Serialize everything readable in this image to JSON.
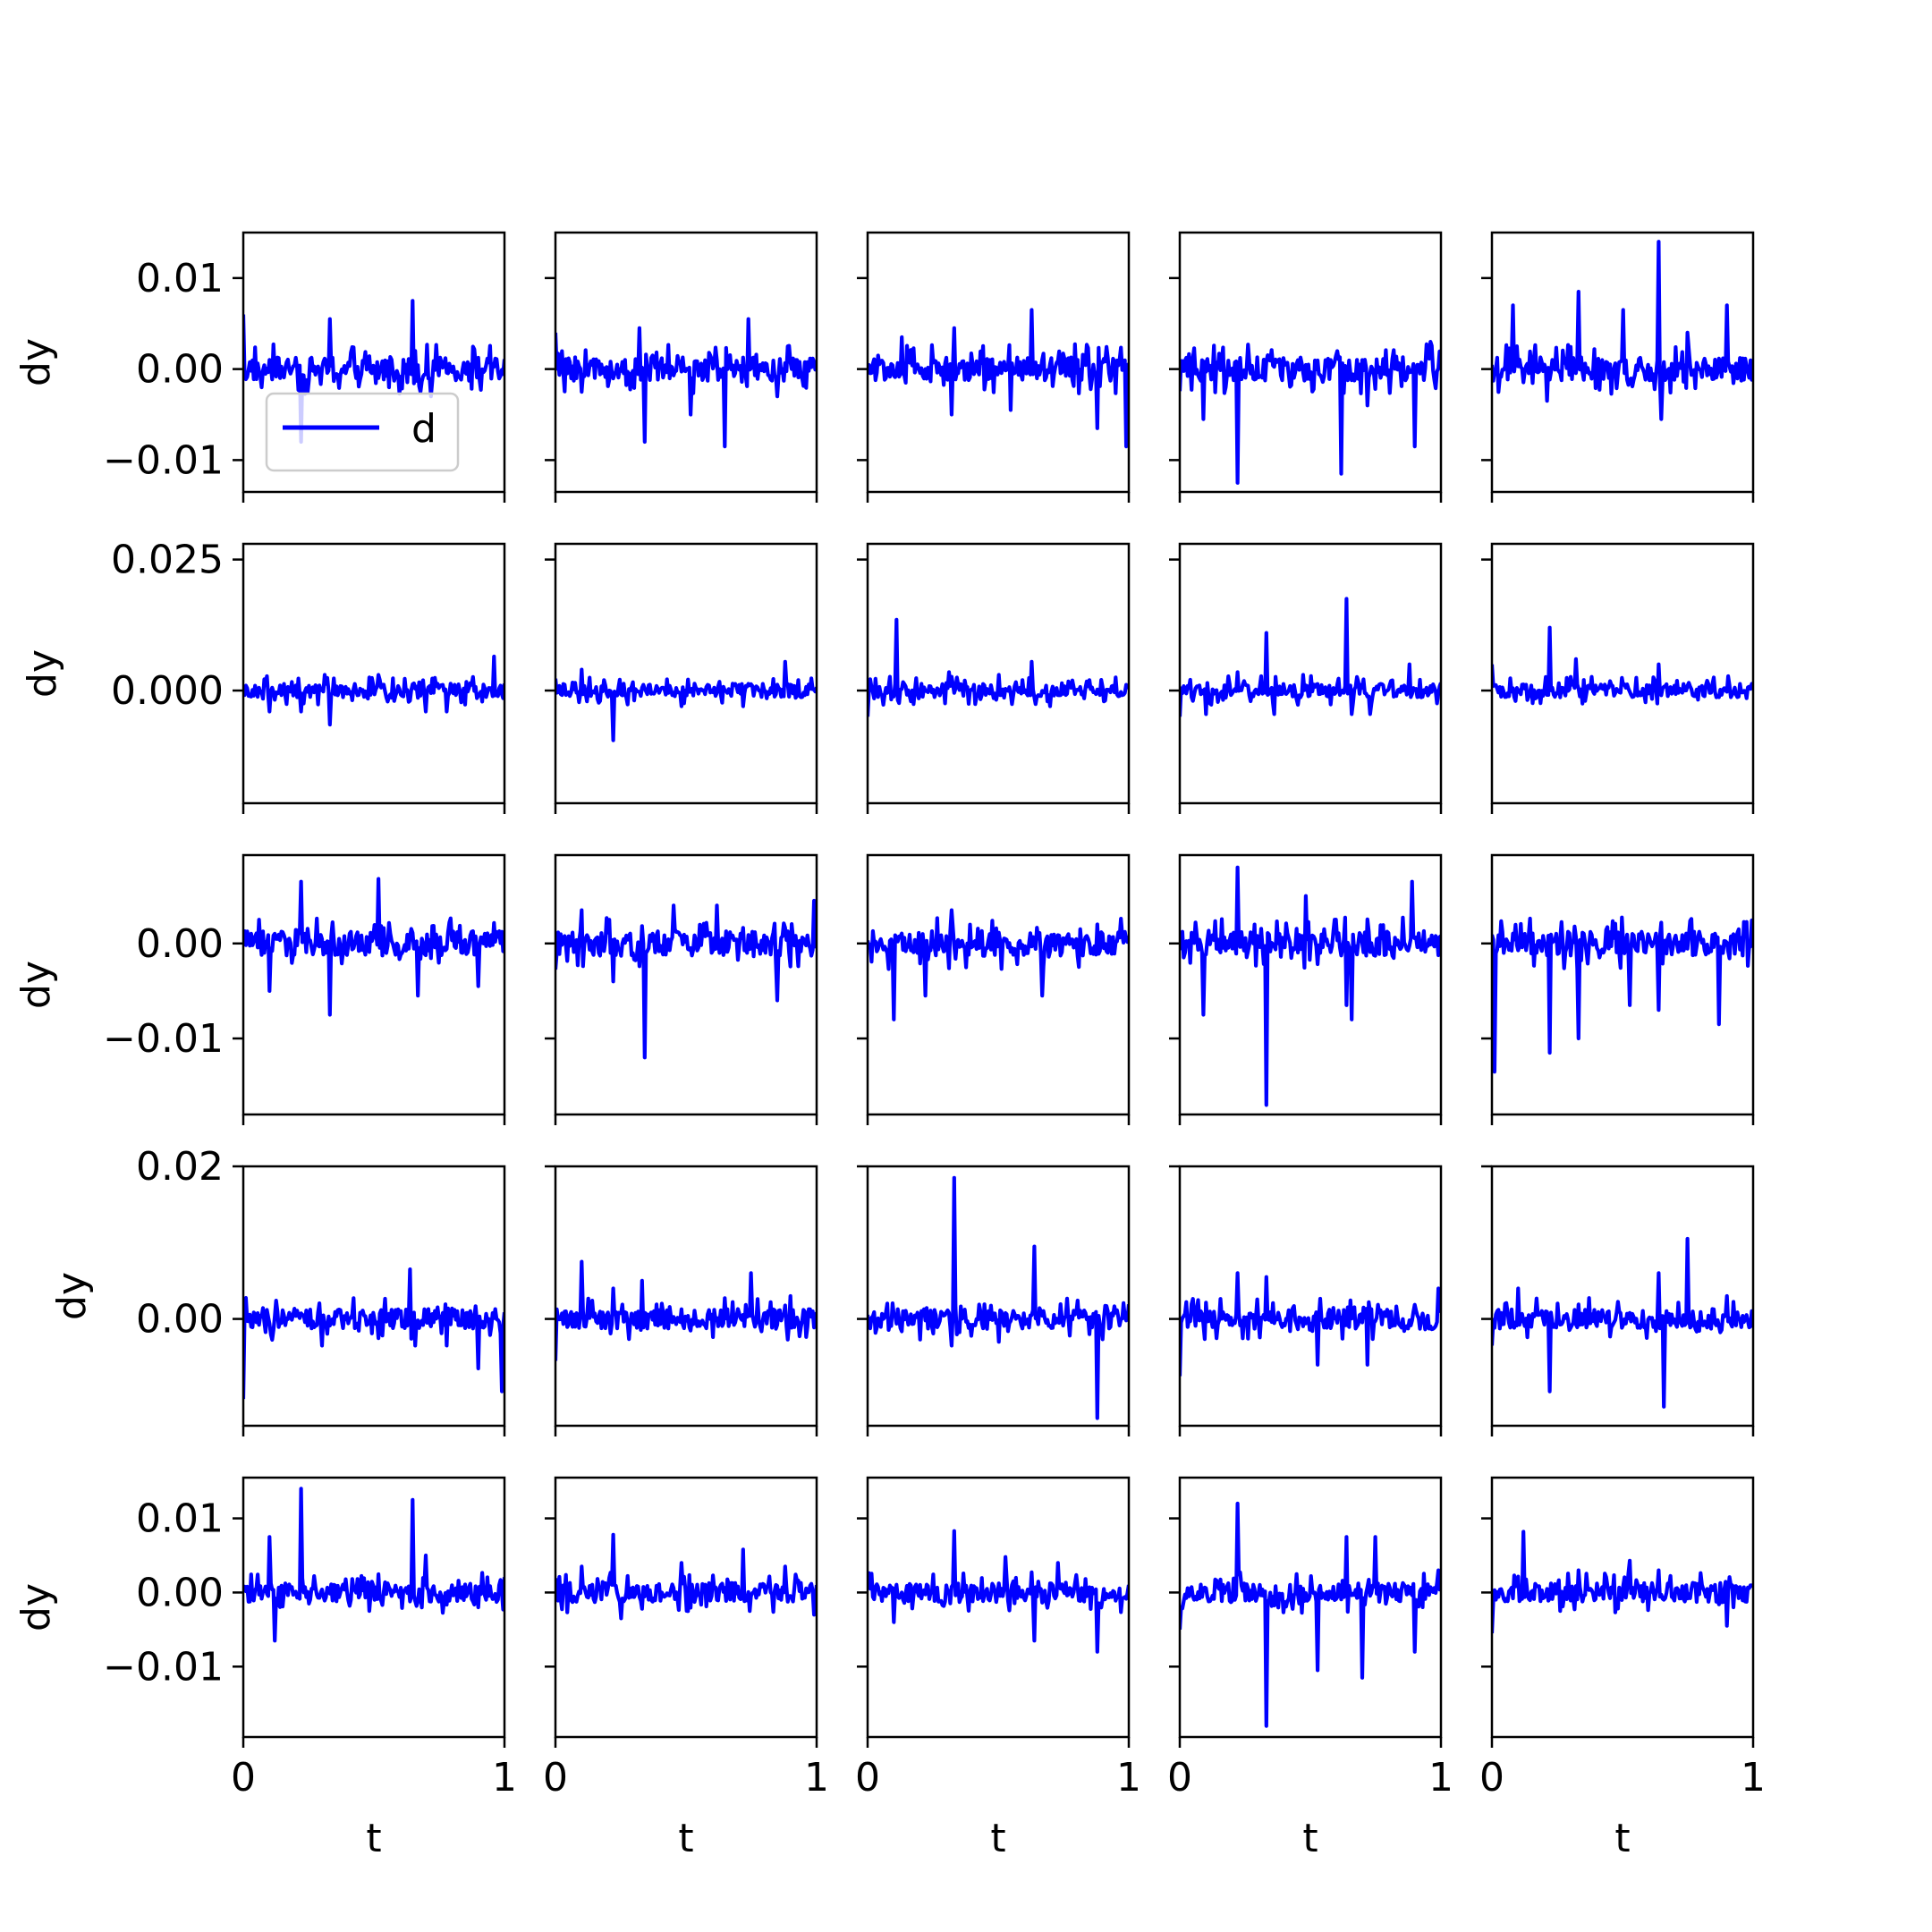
{
  "figure": {
    "line_color": "#0000ff",
    "legend_label": "d",
    "xlabel": "t",
    "ylabel": "dy"
  },
  "chart_data": {
    "type": "line",
    "layout": "5x5 grid of subplots, y shared per row, x shared per column",
    "xlim": [
      0,
      1
    ],
    "x_ticks": [
      0,
      1
    ],
    "x_tick_labels": [
      "0",
      "1"
    ],
    "legend": {
      "entries": [
        "d"
      ],
      "placement": "lower-left of first subplot"
    },
    "rows": [
      {
        "ylim": [
          -0.0135,
          0.015
        ],
        "y_ticks": [
          -0.01,
          0.0,
          0.01
        ],
        "y_tick_labels": [
          "−0.01",
          "0.00",
          "0.01"
        ]
      },
      {
        "ylim": [
          -0.0215,
          0.028
        ],
        "y_ticks": [
          0.0,
          0.025
        ],
        "y_tick_labels": [
          "0.000",
          "0.025"
        ]
      },
      {
        "ylim": [
          -0.018,
          0.0093
        ],
        "y_ticks": [
          -0.01,
          0.0
        ],
        "y_tick_labels": [
          "−0.01",
          "0.00"
        ]
      },
      {
        "ylim": [
          -0.014,
          0.02
        ],
        "y_ticks": [
          0.0,
          0.02
        ],
        "y_tick_labels": [
          "0.00",
          "0.02"
        ]
      },
      {
        "ylim": [
          -0.0195,
          0.0155
        ],
        "y_ticks": [
          -0.01,
          0.0,
          0.01
        ],
        "y_tick_labels": [
          "−0.01",
          "0.00",
          "0.01"
        ]
      }
    ],
    "panels": [
      {
        "row": 0,
        "col": 0,
        "spikes": [
          [
            0.0,
            0.006
          ],
          [
            0.07,
            -0.002
          ],
          [
            0.22,
            -0.008
          ],
          [
            0.33,
            0.0055
          ],
          [
            0.56,
            -0.002
          ],
          [
            0.65,
            0.0075
          ],
          [
            0.66,
            0.002
          ],
          [
            0.72,
            -0.003
          ]
        ],
        "series": [
          {
            "name": "d"
          }
        ]
      },
      {
        "row": 0,
        "col": 1,
        "spikes": [
          [
            0.0,
            0.004
          ],
          [
            0.1,
            -0.0025
          ],
          [
            0.32,
            0.0045
          ],
          [
            0.34,
            -0.008
          ],
          [
            0.52,
            -0.005
          ],
          [
            0.65,
            -0.0085
          ],
          [
            0.74,
            0.0055
          ],
          [
            0.85,
            -0.003
          ]
        ]
      },
      {
        "row": 0,
        "col": 2,
        "spikes": [
          [
            0.13,
            0.0035
          ],
          [
            0.32,
            -0.005
          ],
          [
            0.33,
            0.0045
          ],
          [
            0.55,
            -0.0045
          ],
          [
            0.63,
            0.0065
          ],
          [
            0.88,
            -0.0065
          ],
          [
            0.99,
            -0.0085
          ]
        ]
      },
      {
        "row": 0,
        "col": 3,
        "spikes": [
          [
            0.09,
            -0.0055
          ],
          [
            0.22,
            -0.0125
          ],
          [
            0.62,
            -0.0115
          ],
          [
            0.72,
            -0.004
          ],
          [
            0.9,
            -0.0085
          ],
          [
            0.96,
            0.003
          ]
        ]
      },
      {
        "row": 0,
        "col": 4,
        "spikes": [
          [
            0.08,
            0.007
          ],
          [
            0.21,
            -0.0035
          ],
          [
            0.33,
            0.0085
          ],
          [
            0.5,
            0.0065
          ],
          [
            0.64,
            0.014
          ],
          [
            0.65,
            -0.0055
          ],
          [
            0.75,
            0.004
          ],
          [
            0.9,
            0.007
          ]
        ]
      },
      {
        "row": 1,
        "col": 0,
        "spikes": [
          [
            0.1,
            -0.004
          ],
          [
            0.22,
            -0.004
          ],
          [
            0.31,
            0.003
          ],
          [
            0.33,
            -0.0065
          ],
          [
            0.52,
            0.003
          ],
          [
            0.7,
            -0.004
          ],
          [
            0.78,
            -0.004
          ],
          [
            0.96,
            0.0065
          ]
        ]
      },
      {
        "row": 1,
        "col": 1,
        "spikes": [
          [
            0.1,
            0.004
          ],
          [
            0.22,
            -0.0095
          ],
          [
            0.48,
            -0.003
          ],
          [
            0.72,
            -0.003
          ],
          [
            0.88,
            0.0055
          ],
          [
            0.93,
            0.002
          ]
        ]
      },
      {
        "row": 1,
        "col": 2,
        "spikes": [
          [
            0.0,
            -0.005
          ],
          [
            0.11,
            0.0135
          ],
          [
            0.31,
            0.0035
          ],
          [
            0.5,
            0.003
          ],
          [
            0.63,
            0.0055
          ],
          [
            0.7,
            -0.003
          ],
          [
            0.95,
            0.0025
          ]
        ]
      },
      {
        "row": 1,
        "col": 3,
        "spikes": [
          [
            0.0,
            -0.005
          ],
          [
            0.1,
            -0.0045
          ],
          [
            0.22,
            0.0035
          ],
          [
            0.33,
            0.011
          ],
          [
            0.36,
            -0.0045
          ],
          [
            0.47,
            0.003
          ],
          [
            0.64,
            0.0175
          ],
          [
            0.66,
            -0.0045
          ],
          [
            0.73,
            -0.0045
          ],
          [
            0.88,
            0.005
          ]
        ]
      },
      {
        "row": 1,
        "col": 4,
        "spikes": [
          [
            0.0,
            0.005
          ],
          [
            0.09,
            -0.002
          ],
          [
            0.22,
            0.012
          ],
          [
            0.32,
            0.006
          ],
          [
            0.64,
            0.005
          ],
          [
            0.85,
            0.0025
          ]
        ]
      },
      {
        "row": 2,
        "col": 0,
        "spikes": [
          [
            0.1,
            -0.005
          ],
          [
            0.22,
            0.0065
          ],
          [
            0.33,
            -0.0075
          ],
          [
            0.52,
            0.0068
          ],
          [
            0.67,
            -0.0055
          ],
          [
            0.9,
            -0.0045
          ]
        ]
      },
      {
        "row": 2,
        "col": 1,
        "spikes": [
          [
            0.1,
            0.0035
          ],
          [
            0.22,
            -0.004
          ],
          [
            0.34,
            -0.012
          ],
          [
            0.45,
            0.004
          ],
          [
            0.62,
            0.004
          ],
          [
            0.85,
            -0.006
          ],
          [
            0.99,
            0.0045
          ]
        ]
      },
      {
        "row": 2,
        "col": 2,
        "spikes": [
          [
            0.1,
            -0.008
          ],
          [
            0.22,
            -0.0055
          ],
          [
            0.32,
            0.0035
          ],
          [
            0.67,
            -0.0055
          ],
          [
            0.88,
            0.002
          ]
        ]
      },
      {
        "row": 2,
        "col": 3,
        "spikes": [
          [
            0.09,
            -0.0075
          ],
          [
            0.22,
            0.008
          ],
          [
            0.33,
            -0.017
          ],
          [
            0.48,
            0.005
          ],
          [
            0.64,
            -0.0065
          ],
          [
            0.66,
            -0.008
          ],
          [
            0.89,
            0.0065
          ]
        ]
      },
      {
        "row": 2,
        "col": 4,
        "spikes": [
          [
            0.01,
            -0.0135
          ],
          [
            0.22,
            -0.0115
          ],
          [
            0.33,
            -0.01
          ],
          [
            0.53,
            -0.0065
          ],
          [
            0.64,
            -0.007
          ],
          [
            0.87,
            -0.0085
          ]
        ]
      },
      {
        "row": 3,
        "col": 0,
        "spikes": [
          [
            0.0,
            -0.0105
          ],
          [
            0.3,
            -0.0035
          ],
          [
            0.64,
            0.0065
          ],
          [
            0.66,
            -0.0035
          ],
          [
            0.78,
            -0.0035
          ],
          [
            0.9,
            -0.0065
          ],
          [
            0.99,
            -0.0095
          ]
        ]
      },
      {
        "row": 3,
        "col": 1,
        "spikes": [
          [
            0.0,
            -0.0055
          ],
          [
            0.1,
            0.0075
          ],
          [
            0.22,
            0.004
          ],
          [
            0.33,
            0.005
          ],
          [
            0.75,
            0.006
          ],
          [
            0.9,
            0.003
          ]
        ]
      },
      {
        "row": 3,
        "col": 2,
        "spikes": [
          [
            0.32,
            -0.0035
          ],
          [
            0.33,
            0.0185
          ],
          [
            0.5,
            -0.003
          ],
          [
            0.64,
            0.0095
          ],
          [
            0.88,
            -0.013
          ]
        ]
      },
      {
        "row": 3,
        "col": 3,
        "spikes": [
          [
            0.0,
            -0.0075
          ],
          [
            0.22,
            0.006
          ],
          [
            0.33,
            0.0055
          ],
          [
            0.53,
            -0.006
          ],
          [
            0.72,
            -0.006
          ],
          [
            0.99,
            0.004
          ]
        ]
      },
      {
        "row": 3,
        "col": 4,
        "spikes": [
          [
            0.0,
            -0.0035
          ],
          [
            0.1,
            0.004
          ],
          [
            0.22,
            -0.0095
          ],
          [
            0.64,
            0.006
          ],
          [
            0.66,
            -0.0115
          ],
          [
            0.75,
            0.0105
          ],
          [
            0.9,
            0.003
          ]
        ]
      },
      {
        "row": 4,
        "col": 0,
        "spikes": [
          [
            0.1,
            0.0075
          ],
          [
            0.12,
            -0.0065
          ],
          [
            0.22,
            0.014
          ],
          [
            0.48,
            -0.0025
          ],
          [
            0.65,
            0.0125
          ],
          [
            0.7,
            0.005
          ],
          [
            0.9,
            -0.002
          ]
        ]
      },
      {
        "row": 4,
        "col": 1,
        "spikes": [
          [
            0.1,
            0.0035
          ],
          [
            0.22,
            0.0078
          ],
          [
            0.25,
            -0.0035
          ],
          [
            0.48,
            0.004
          ],
          [
            0.72,
            0.0058
          ],
          [
            0.88,
            0.0035
          ],
          [
            0.99,
            -0.003
          ]
        ]
      },
      {
        "row": 4,
        "col": 2,
        "spikes": [
          [
            0.1,
            -0.004
          ],
          [
            0.33,
            0.0083
          ],
          [
            0.53,
            0.0048
          ],
          [
            0.64,
            -0.0065
          ],
          [
            0.73,
            0.004
          ],
          [
            0.88,
            -0.008
          ]
        ]
      },
      {
        "row": 4,
        "col": 3,
        "spikes": [
          [
            0.0,
            -0.005
          ],
          [
            0.22,
            0.012
          ],
          [
            0.33,
            -0.018
          ],
          [
            0.53,
            -0.0105
          ],
          [
            0.64,
            0.0075
          ],
          [
            0.7,
            -0.0115
          ],
          [
            0.75,
            0.0075
          ],
          [
            0.9,
            -0.008
          ],
          [
            0.99,
            0.003
          ]
        ]
      },
      {
        "row": 4,
        "col": 4,
        "spikes": [
          [
            0.0,
            -0.0055
          ],
          [
            0.12,
            0.0082
          ],
          [
            0.33,
            0.003
          ],
          [
            0.53,
            0.0043
          ],
          [
            0.64,
            0.003
          ],
          [
            0.9,
            -0.0045
          ]
        ]
      }
    ]
  }
}
